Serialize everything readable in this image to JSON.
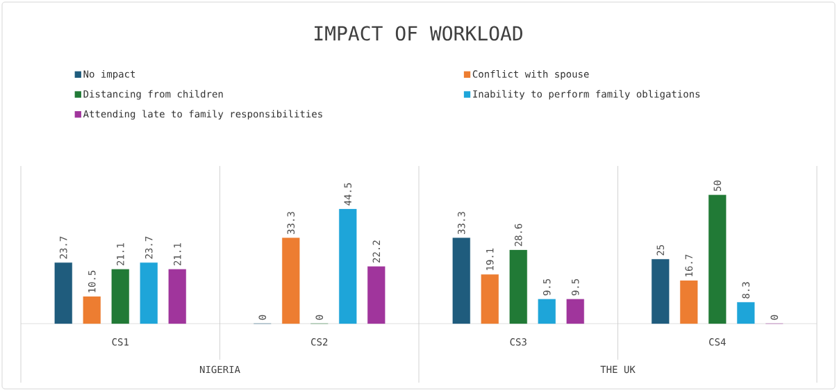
{
  "chart_data": {
    "type": "bar",
    "title": "IMPACT OF WORKLOAD",
    "categories": [
      "CS1",
      "CS2",
      "CS3",
      "CS4"
    ],
    "series": [
      {
        "name": "No impact",
        "color": "#1f5c7d",
        "values": [
          23.7,
          0,
          33.3,
          25
        ],
        "value_labels": [
          "23.7",
          "0",
          "33.3",
          "25"
        ]
      },
      {
        "name": "Conflict with spouse",
        "color": "#ed7d31",
        "values": [
          10.5,
          33.3,
          19.1,
          16.7
        ],
        "value_labels": [
          "10.5",
          "33.3",
          "19.1",
          "16.7"
        ]
      },
      {
        "name": "Distancing from children",
        "color": "#217a36",
        "values": [
          21.1,
          0,
          28.6,
          50
        ],
        "value_labels": [
          "21.1",
          "0",
          "28.6",
          "50"
        ]
      },
      {
        "name": "Inability to perform family obligations",
        "color": "#1ea5d9",
        "values": [
          23.7,
          44.5,
          9.5,
          8.3
        ],
        "value_labels": [
          "23.7",
          "44.5",
          "9.5",
          "8.3"
        ]
      },
      {
        "name": "Attending late to family responsibilities",
        "color": "#a0359c",
        "values": [
          21.1,
          22.2,
          9.5,
          0
        ],
        "value_labels": [
          "21.1",
          "22.2",
          "9.5",
          "0"
        ]
      }
    ],
    "annotations": [
      "NIGERIA",
      "THE UK"
    ],
    "legend": "top"
  }
}
